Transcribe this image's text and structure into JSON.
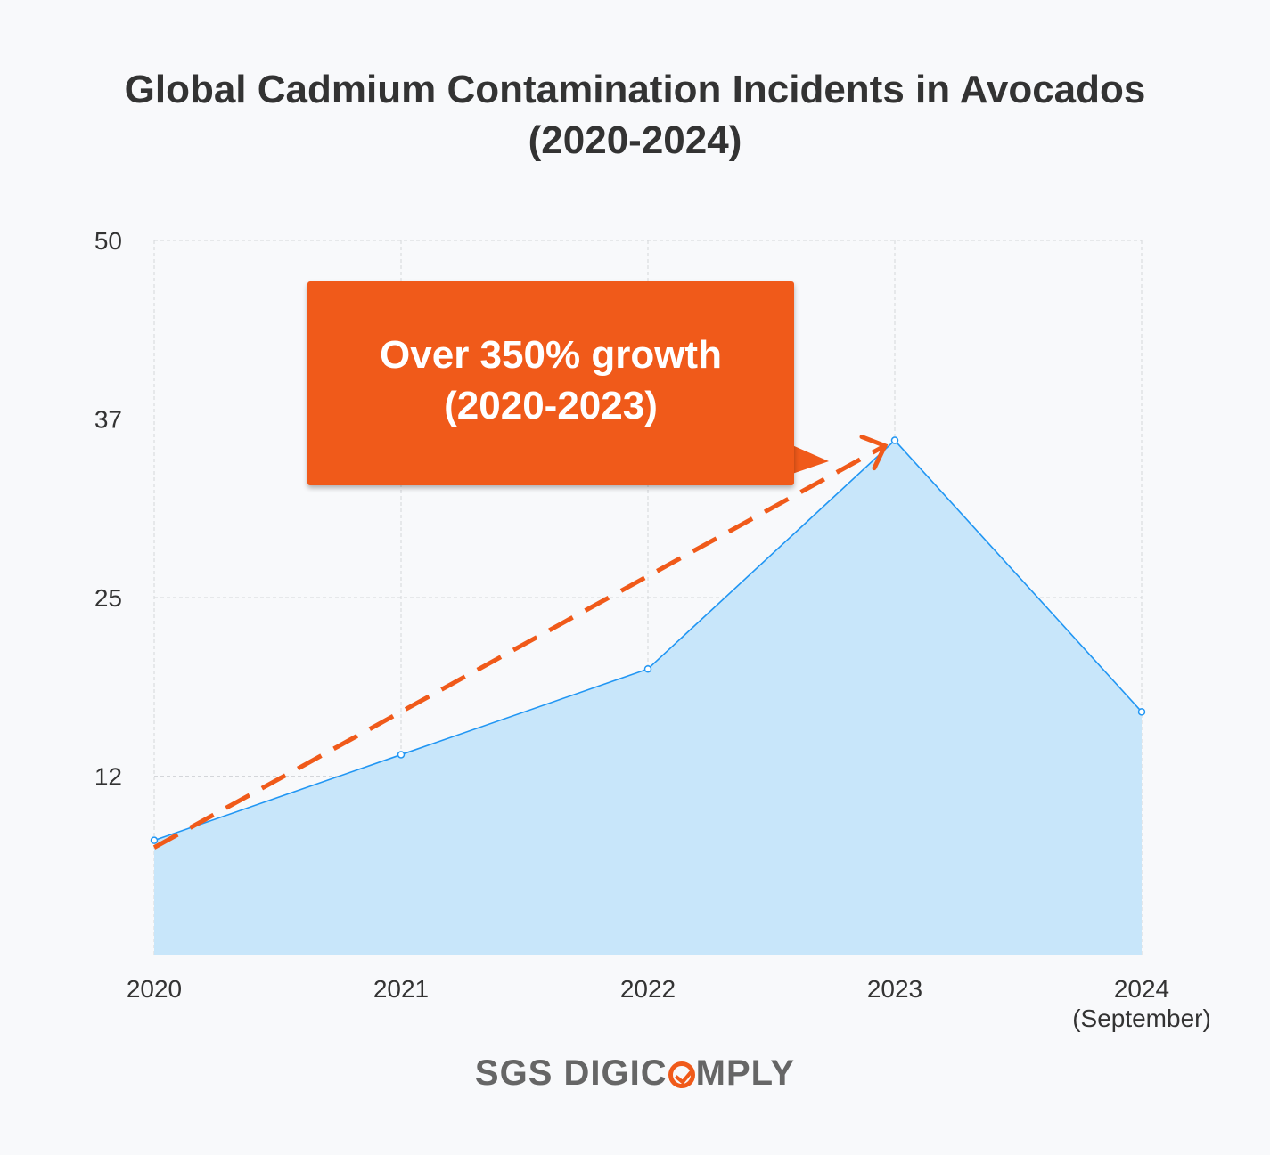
{
  "chart_data": {
    "type": "area",
    "title": "Global Cadmium Contamination Incidents in Avocados (2020-2024)",
    "title_lines": [
      "Global Cadmium Contamination Incidents in Avocados",
      "(2020-2024)"
    ],
    "categories": [
      "2020",
      "2021",
      "2022",
      "2023",
      "2024"
    ],
    "category_labels": [
      [
        "2020"
      ],
      [
        "2021"
      ],
      [
        "2022"
      ],
      [
        "2023"
      ],
      [
        "2024",
        "(September)"
      ]
    ],
    "values": [
      8,
      14,
      20,
      36,
      17
    ],
    "ylim": [
      0,
      50
    ],
    "yticks": [
      12,
      25,
      37,
      50
    ],
    "ytick_positions": [
      12.5,
      25,
      37.5,
      50
    ],
    "grid": true,
    "colors": {
      "line": "#2196f3",
      "fill": "#c8e6fa",
      "annotation": "#f05a1a",
      "trend": "#f05a1a"
    },
    "annotation": {
      "lines": [
        "Over 350% growth",
        "(2020-2023)"
      ],
      "trend_from": [
        "2020",
        7.5
      ],
      "trend_to": [
        "2023",
        35.5
      ]
    }
  },
  "logo": {
    "text": "SGS DIGICOMPLY",
    "before": "SGS DIGIC",
    "after": "MPLY"
  }
}
